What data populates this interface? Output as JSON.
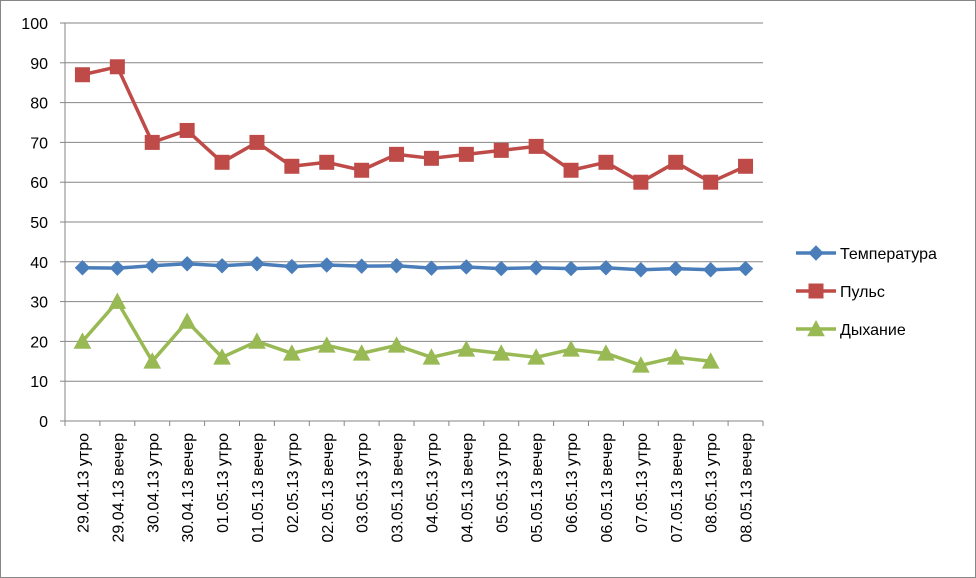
{
  "chart_data": {
    "type": "line",
    "categories": [
      "29.04.13 утро",
      "29.04.13 вечер",
      "30.04.13 утро",
      "30.04.13 вечер",
      "01.05.13 утро",
      "01.05.13 вечер",
      "02.05.13 утро",
      "02.05.13 вечер",
      "03.05.13 утро",
      "03.05.13 вечер",
      "04.05.13 утро",
      "04.05.13 вечер",
      "05.05.13 утро",
      "05.05.13 вечер",
      "06.05.13 утро",
      "06.05.13 вечер",
      "07.05.13 утро",
      "07.05.13 вечер",
      "08.05.13 утро",
      "08.05.13 вечер"
    ],
    "ylim": [
      0,
      100
    ],
    "yticks": [
      0,
      10,
      20,
      30,
      40,
      50,
      60,
      70,
      80,
      90,
      100
    ],
    "grid": true,
    "legend_position": "right",
    "series": [
      {
        "name": "Температура",
        "color": "#4A7EBB",
        "marker": "diamond",
        "values": [
          38.5,
          38.4,
          39.0,
          39.5,
          39.0,
          39.5,
          38.8,
          39.2,
          38.9,
          39.0,
          38.4,
          38.7,
          38.3,
          38.5,
          38.3,
          38.5,
          38.0,
          38.3,
          38.0,
          38.3
        ]
      },
      {
        "name": "Пульс",
        "color": "#BE4B48",
        "marker": "square",
        "values": [
          87,
          89,
          70,
          73,
          65,
          70,
          64,
          65,
          63,
          67,
          66,
          67,
          68,
          69,
          63,
          65,
          60,
          65,
          60,
          64
        ]
      },
      {
        "name": "Дыхание",
        "color": "#98B954",
        "marker": "triangle",
        "values": [
          20,
          30,
          15,
          25,
          16,
          20,
          17,
          19,
          17,
          19,
          16,
          18,
          17,
          16,
          18,
          17,
          14,
          16,
          15,
          null
        ]
      }
    ]
  }
}
